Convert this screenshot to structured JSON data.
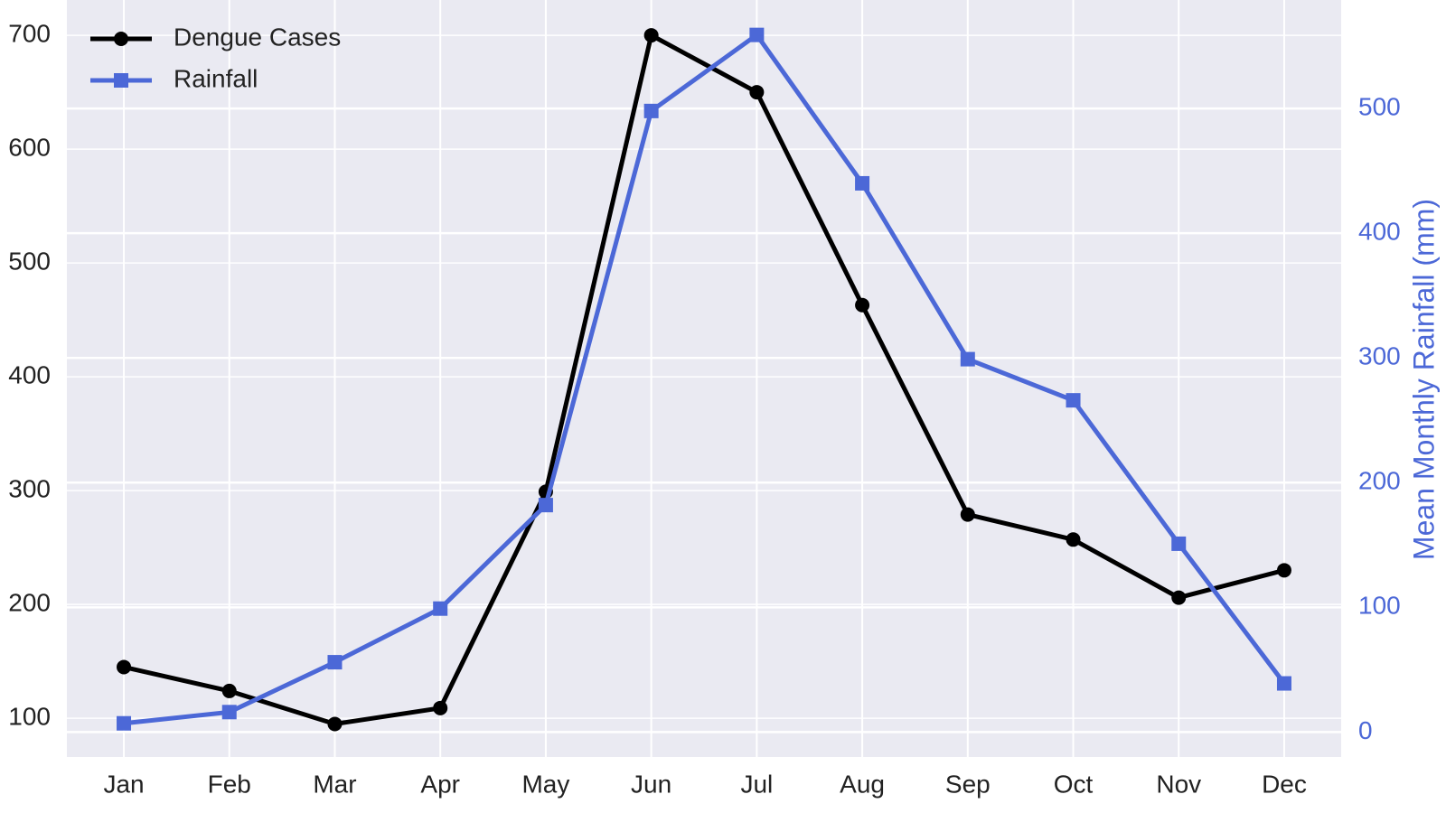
{
  "chart_data": {
    "type": "line",
    "categories": [
      "Jan",
      "Feb",
      "Mar",
      "Apr",
      "May",
      "Jun",
      "Jul",
      "Aug",
      "Sep",
      "Oct",
      "Nov",
      "Dec"
    ],
    "series": [
      {
        "name": "Dengue Cases",
        "color": "#000000",
        "marker": "circle",
        "values": [
          145,
          124,
          95,
          109,
          299,
          700,
          650,
          463,
          279,
          257,
          206,
          230
        ]
      },
      {
        "name": "Rainfall",
        "color": "#4c68d7",
        "marker": "square",
        "axis": "y2",
        "values": [
          7,
          16,
          56,
          99,
          182,
          498,
          559,
          440,
          299,
          266,
          151,
          39
        ]
      }
    ],
    "ylim": [
      66,
      731
    ],
    "yticks": [
      100,
      200,
      300,
      400,
      500,
      600,
      700
    ],
    "y2lim": [
      -20,
      587
    ],
    "y2ticks": [
      0,
      100,
      200,
      300,
      400,
      500
    ],
    "y2label": "Mean Monthly Rainfall (mm)",
    "grid": true,
    "legend": "upper left"
  }
}
